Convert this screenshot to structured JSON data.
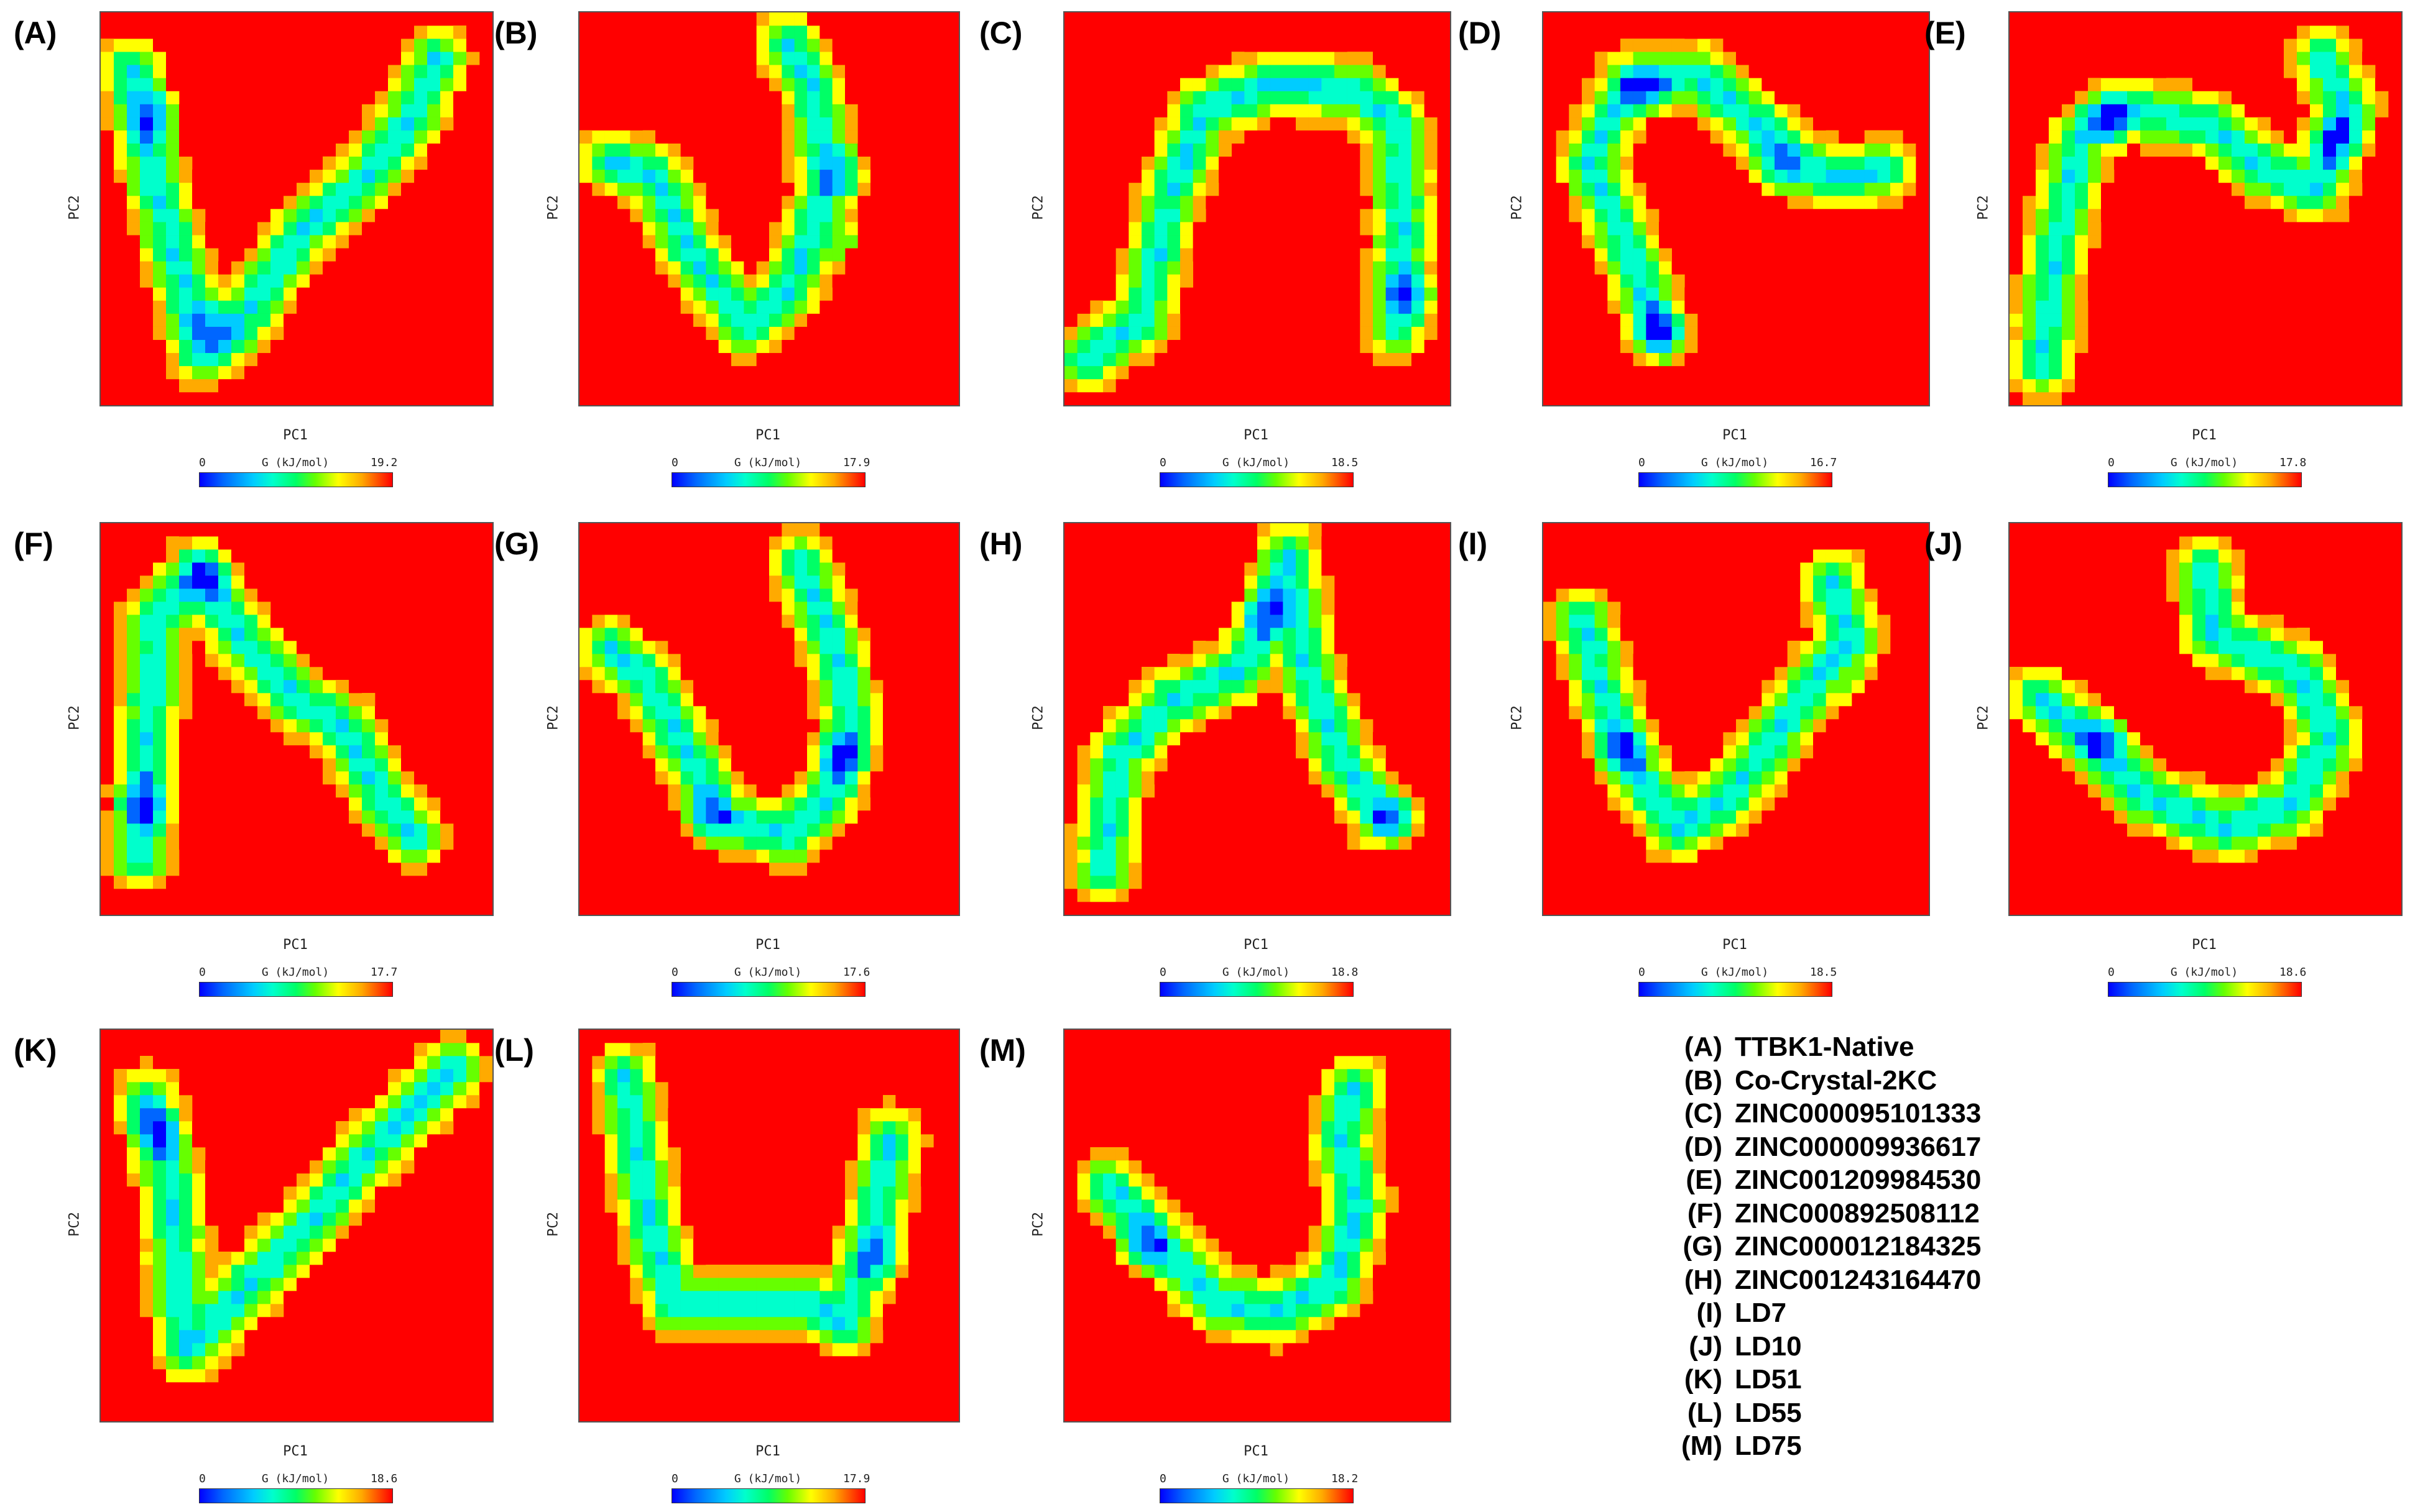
{
  "colors": {
    "background": "#ff0000",
    "low_energy": "#0000ff",
    "mid_energy": "#00ffcc",
    "high_energy": "#ff0000",
    "colormap": [
      "#0000ff",
      "#0066ff",
      "#00ccff",
      "#00ffcc",
      "#00ff66",
      "#66ff00",
      "#ffff00",
      "#ffaa00",
      "#ff0000"
    ]
  },
  "chart_data": [
    {
      "type": "heatmap",
      "panel": "(A)",
      "xlabel": "PC1",
      "ylabel": "PC2",
      "colorbar_label": "G (kJ/mol)",
      "colorbar_min": "0",
      "colorbar_max": "19.2",
      "path": [
        [
          0.08,
          0.85
        ],
        [
          0.13,
          0.6
        ],
        [
          0.2,
          0.35
        ],
        [
          0.26,
          0.13
        ],
        [
          0.35,
          0.2
        ],
        [
          0.52,
          0.45
        ],
        [
          0.68,
          0.58
        ],
        [
          0.8,
          0.75
        ],
        [
          0.86,
          0.88
        ]
      ],
      "minima": [
        [
          0.14,
          0.74
        ],
        [
          0.28,
          0.2
        ]
      ]
    },
    {
      "type": "heatmap",
      "panel": "(B)",
      "xlabel": "PC1",
      "ylabel": "PC2",
      "colorbar_label": "G (kJ/mol)",
      "colorbar_min": "0",
      "colorbar_max": "17.9",
      "path": [
        [
          0.08,
          0.62
        ],
        [
          0.2,
          0.58
        ],
        [
          0.3,
          0.38
        ],
        [
          0.44,
          0.2
        ],
        [
          0.56,
          0.3
        ],
        [
          0.65,
          0.55
        ],
        [
          0.62,
          0.8
        ],
        [
          0.55,
          0.92
        ]
      ],
      "minima": [
        [
          0.72,
          0.4
        ],
        [
          0.7,
          0.6
        ]
      ]
    },
    {
      "type": "heatmap",
      "panel": "(C)",
      "xlabel": "PC1",
      "ylabel": "PC2",
      "colorbar_label": "G (kJ/mol)",
      "colorbar_min": "0",
      "colorbar_max": "18.5",
      "path": [
        [
          0.06,
          0.12
        ],
        [
          0.2,
          0.22
        ],
        [
          0.28,
          0.55
        ],
        [
          0.36,
          0.75
        ],
        [
          0.55,
          0.82
        ],
        [
          0.75,
          0.8
        ],
        [
          0.86,
          0.72
        ],
        [
          0.88,
          0.45
        ],
        [
          0.86,
          0.2
        ]
      ],
      "minima": [
        [
          0.9,
          0.28
        ]
      ]
    },
    {
      "type": "heatmap",
      "panel": "(D)",
      "xlabel": "PC1",
      "ylabel": "PC2",
      "colorbar_label": "G (kJ/mol)",
      "colorbar_min": "0",
      "colorbar_max": "16.7",
      "path": [
        [
          0.3,
          0.18
        ],
        [
          0.22,
          0.4
        ],
        [
          0.12,
          0.62
        ],
        [
          0.22,
          0.82
        ],
        [
          0.4,
          0.84
        ],
        [
          0.55,
          0.72
        ],
        [
          0.68,
          0.6
        ],
        [
          0.8,
          0.58
        ],
        [
          0.88,
          0.6
        ]
      ],
      "minima": [
        [
          0.26,
          0.8
        ],
        [
          0.6,
          0.6
        ],
        [
          0.3,
          0.2
        ]
      ]
    },
    {
      "type": "heatmap",
      "panel": "(E)",
      "xlabel": "PC1",
      "ylabel": "PC2",
      "colorbar_label": "G (kJ/mol)",
      "colorbar_min": "0",
      "colorbar_max": "17.8",
      "path": [
        [
          0.08,
          0.1
        ],
        [
          0.12,
          0.4
        ],
        [
          0.18,
          0.68
        ],
        [
          0.3,
          0.75
        ],
        [
          0.5,
          0.72
        ],
        [
          0.65,
          0.6
        ],
        [
          0.78,
          0.55
        ],
        [
          0.86,
          0.75
        ],
        [
          0.8,
          0.88
        ]
      ],
      "minima": [
        [
          0.25,
          0.74
        ],
        [
          0.84,
          0.68
        ]
      ]
    },
    {
      "type": "heatmap",
      "panel": "(F)",
      "xlabel": "PC1",
      "ylabel": "PC2",
      "colorbar_label": "G (kJ/mol)",
      "colorbar_min": "0",
      "colorbar_max": "17.7",
      "path": [
        [
          0.1,
          0.15
        ],
        [
          0.12,
          0.45
        ],
        [
          0.14,
          0.75
        ],
        [
          0.25,
          0.88
        ],
        [
          0.35,
          0.72
        ],
        [
          0.5,
          0.55
        ],
        [
          0.62,
          0.48
        ],
        [
          0.72,
          0.3
        ],
        [
          0.8,
          0.2
        ]
      ],
      "minima": [
        [
          0.27,
          0.86
        ],
        [
          0.11,
          0.28
        ]
      ]
    },
    {
      "type": "heatmap",
      "panel": "(G)",
      "xlabel": "PC1",
      "ylabel": "PC2",
      "colorbar_label": "G (kJ/mol)",
      "colorbar_min": "0",
      "colorbar_max": "17.6",
      "path": [
        [
          0.08,
          0.68
        ],
        [
          0.18,
          0.6
        ],
        [
          0.28,
          0.42
        ],
        [
          0.38,
          0.25
        ],
        [
          0.55,
          0.2
        ],
        [
          0.66,
          0.3
        ],
        [
          0.72,
          0.5
        ],
        [
          0.66,
          0.72
        ],
        [
          0.58,
          0.9
        ]
      ],
      "minima": [
        [
          0.33,
          0.25
        ],
        [
          0.7,
          0.4
        ]
      ]
    },
    {
      "type": "heatmap",
      "panel": "(H)",
      "xlabel": "PC1",
      "ylabel": "PC2",
      "colorbar_label": "G (kJ/mol)",
      "colorbar_min": "0",
      "colorbar_max": "18.8",
      "path": [
        [
          0.1,
          0.12
        ],
        [
          0.14,
          0.4
        ],
        [
          0.28,
          0.55
        ],
        [
          0.45,
          0.62
        ],
        [
          0.55,
          0.78
        ],
        [
          0.58,
          0.92
        ],
        [
          0.62,
          0.65
        ],
        [
          0.72,
          0.4
        ],
        [
          0.82,
          0.25
        ]
      ],
      "minima": [
        [
          0.86,
          0.25
        ],
        [
          0.52,
          0.78
        ]
      ]
    },
    {
      "type": "heatmap",
      "panel": "(I)",
      "xlabel": "PC1",
      "ylabel": "PC2",
      "colorbar_label": "G (kJ/mol)",
      "colorbar_min": "0",
      "colorbar_max": "18.5",
      "path": [
        [
          0.1,
          0.75
        ],
        [
          0.18,
          0.5
        ],
        [
          0.25,
          0.35
        ],
        [
          0.35,
          0.22
        ],
        [
          0.48,
          0.3
        ],
        [
          0.6,
          0.45
        ],
        [
          0.72,
          0.62
        ],
        [
          0.8,
          0.7
        ],
        [
          0.75,
          0.85
        ]
      ],
      "minima": [
        [
          0.2,
          0.42
        ],
        [
          0.85,
          0.55
        ]
      ]
    },
    {
      "type": "heatmap",
      "panel": "(J)",
      "xlabel": "PC1",
      "ylabel": "PC2",
      "colorbar_label": "G (kJ/mol)",
      "colorbar_min": "0",
      "colorbar_max": "18.6",
      "path": [
        [
          0.08,
          0.55
        ],
        [
          0.2,
          0.45
        ],
        [
          0.35,
          0.3
        ],
        [
          0.55,
          0.22
        ],
        [
          0.72,
          0.28
        ],
        [
          0.82,
          0.45
        ],
        [
          0.74,
          0.62
        ],
        [
          0.52,
          0.72
        ],
        [
          0.5,
          0.88
        ]
      ],
      "minima": [
        [
          0.24,
          0.45
        ]
      ]
    },
    {
      "type": "heatmap",
      "panel": "(K)",
      "xlabel": "PC1",
      "ylabel": "PC2",
      "colorbar_label": "G (kJ/mol)",
      "colorbar_min": "0",
      "colorbar_max": "18.6",
      "path": [
        [
          0.12,
          0.82
        ],
        [
          0.18,
          0.6
        ],
        [
          0.2,
          0.35
        ],
        [
          0.22,
          0.18
        ],
        [
          0.38,
          0.35
        ],
        [
          0.55,
          0.52
        ],
        [
          0.66,
          0.66
        ],
        [
          0.8,
          0.8
        ],
        [
          0.9,
          0.9
        ]
      ],
      "minima": [
        [
          0.15,
          0.74
        ]
      ]
    },
    {
      "type": "heatmap",
      "panel": "(L)",
      "xlabel": "PC1",
      "ylabel": "PC2",
      "colorbar_label": "G (kJ/mol)",
      "colorbar_min": "0",
      "colorbar_max": "17.9",
      "path": [
        [
          0.12,
          0.88
        ],
        [
          0.16,
          0.65
        ],
        [
          0.2,
          0.45
        ],
        [
          0.25,
          0.3
        ],
        [
          0.45,
          0.3
        ],
        [
          0.6,
          0.3
        ],
        [
          0.7,
          0.25
        ],
        [
          0.78,
          0.5
        ],
        [
          0.82,
          0.72
        ]
      ],
      "minima": [
        [
          0.8,
          0.42
        ]
      ]
    },
    {
      "type": "heatmap",
      "panel": "(M)",
      "xlabel": "PC1",
      "ylabel": "PC2",
      "colorbar_label": "G (kJ/mol)",
      "colorbar_min": "0",
      "colorbar_max": "18.2",
      "path": [
        [
          0.12,
          0.6
        ],
        [
          0.25,
          0.45
        ],
        [
          0.4,
          0.3
        ],
        [
          0.55,
          0.28
        ],
        [
          0.7,
          0.35
        ],
        [
          0.76,
          0.55
        ],
        [
          0.72,
          0.72
        ],
        [
          0.75,
          0.85
        ]
      ],
      "minima": [
        [
          0.2,
          0.45
        ]
      ]
    }
  ],
  "panels": [
    {
      "letter": "(A)"
    },
    {
      "letter": "(B)"
    },
    {
      "letter": "(C)"
    },
    {
      "letter": "(D)"
    },
    {
      "letter": "(E)"
    },
    {
      "letter": "(F)"
    },
    {
      "letter": "(G)"
    },
    {
      "letter": "(H)"
    },
    {
      "letter": "(I)"
    },
    {
      "letter": "(J)"
    },
    {
      "letter": "(K)"
    },
    {
      "letter": "(L)"
    },
    {
      "letter": "(M)"
    }
  ],
  "legend": [
    {
      "key": "(A)",
      "name": "TTBK1-Native"
    },
    {
      "key": "(B)",
      "name": "Co-Crystal-2KC"
    },
    {
      "key": "(C)",
      "name": "ZINC000095101333"
    },
    {
      "key": "(D)",
      "name": "ZINC000009936617"
    },
    {
      "key": "(E)",
      "name": "ZINC001209984530"
    },
    {
      "key": "(F)",
      "name": "ZINC000892508112"
    },
    {
      "key": "(G)",
      "name": "ZINC000012184325"
    },
    {
      "key": "(H)",
      "name": "ZINC001243164470"
    },
    {
      "key": "(I)",
      "name": "LD7"
    },
    {
      "key": "(J)",
      "name": "LD10"
    },
    {
      "key": "(K)",
      "name": "LD51"
    },
    {
      "key": "(L)",
      "name": "LD55"
    },
    {
      "key": "(M)",
      "name": "LD75"
    }
  ]
}
